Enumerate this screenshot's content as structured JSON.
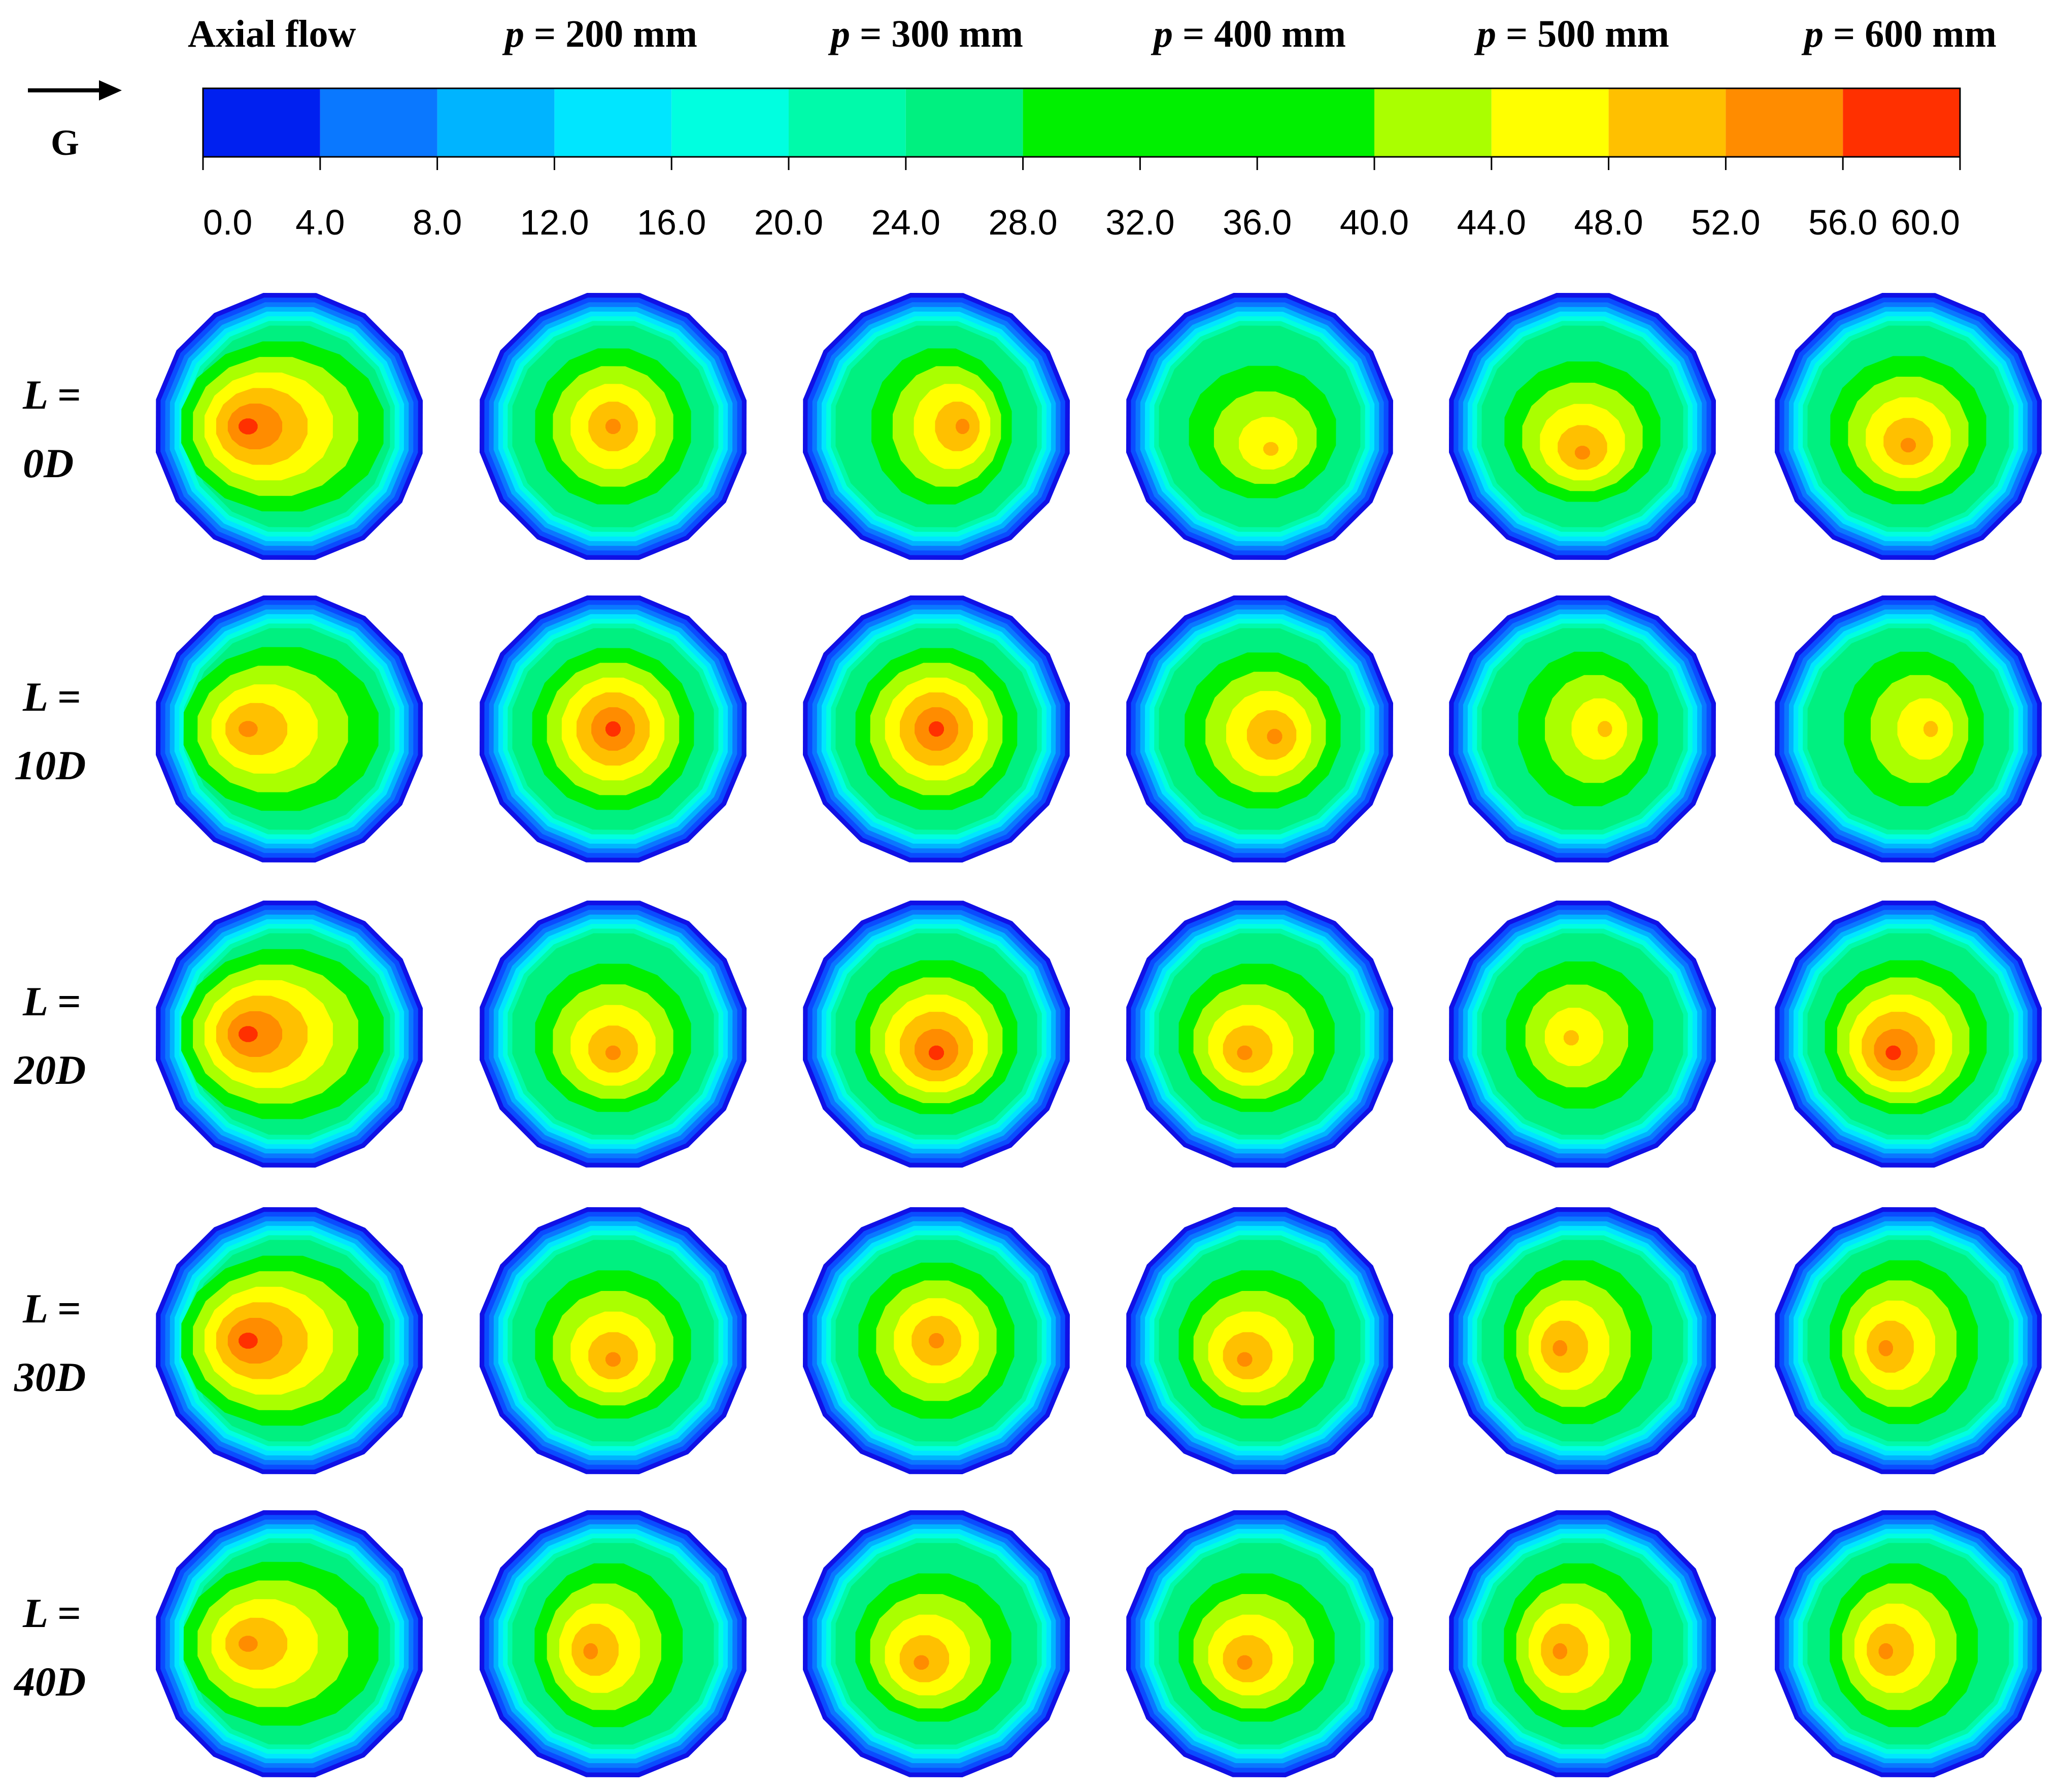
{
  "header": {
    "axial_flow": "Axial flow",
    "columns": [
      {
        "var": "p",
        "rest": " = 200 mm"
      },
      {
        "var": "p",
        "rest": " = 300 mm"
      },
      {
        "var": "p",
        "rest": " = 400 mm"
      },
      {
        "var": "p",
        "rest": " = 500 mm"
      },
      {
        "var": "p",
        "rest": " = 600 mm"
      }
    ]
  },
  "gravity": {
    "label": "G"
  },
  "colorbar": {
    "ticks": [
      "0.0",
      "4.0",
      "8.0",
      "12.0",
      "16.0",
      "20.0",
      "24.0",
      "28.0",
      "32.0",
      "36.0",
      "40.0",
      "44.0",
      "48.0",
      "52.0",
      "56.0",
      "60.0"
    ],
    "bands": [
      {
        "from": 0,
        "to": 4,
        "color": "#0020f0"
      },
      {
        "from": 4,
        "to": 8,
        "color": "#0a78ff"
      },
      {
        "from": 8,
        "to": 12,
        "color": "#00b4ff"
      },
      {
        "from": 12,
        "to": 16,
        "color": "#00e6ff"
      },
      {
        "from": 16,
        "to": 20,
        "color": "#00ffe0"
      },
      {
        "from": 20,
        "to": 24,
        "color": "#00faaa"
      },
      {
        "from": 24,
        "to": 28,
        "color": "#00f080"
      },
      {
        "from": 28,
        "to": 40,
        "color": "#00f000"
      },
      {
        "from": 40,
        "to": 44,
        "color": "#aaff00"
      },
      {
        "from": 44,
        "to": 48,
        "color": "#ffff00"
      },
      {
        "from": 48,
        "to": 52,
        "color": "#ffc000"
      },
      {
        "from": 52,
        "to": 56,
        "color": "#ff8c00"
      },
      {
        "from": 56,
        "to": 60,
        "color": "#ff3000"
      }
    ]
  },
  "rows": [
    {
      "line1": "L =",
      "line2": "0D"
    },
    {
      "line1": "L =",
      "line2": "10D"
    },
    {
      "line1": "L =",
      "line2": "20D"
    },
    {
      "line1": "L =",
      "line2": "30D"
    },
    {
      "line1": "L =",
      "line2": "40D"
    }
  ],
  "contour_grid": {
    "rows": 5,
    "cols": 6,
    "cells": [
      [
        {
          "max_level": 13,
          "shape": "left-band"
        },
        {
          "max_level": 12,
          "shape": "center"
        },
        {
          "max_level": 12,
          "shape": "right-lobe"
        },
        {
          "max_level": 11,
          "shape": "lower-right"
        },
        {
          "max_level": 12,
          "shape": "lower"
        },
        {
          "max_level": 12,
          "shape": "lower-center"
        }
      ],
      [
        {
          "max_level": 12,
          "shape": "left-band"
        },
        {
          "max_level": 13,
          "shape": "center"
        },
        {
          "max_level": 13,
          "shape": "center"
        },
        {
          "max_level": 12,
          "shape": "center-right"
        },
        {
          "max_level": 11,
          "shape": "right"
        },
        {
          "max_level": 11,
          "shape": "right"
        }
      ],
      [
        {
          "max_level": 13,
          "shape": "left-band"
        },
        {
          "max_level": 12,
          "shape": "lower-center"
        },
        {
          "max_level": 13,
          "shape": "lower-center"
        },
        {
          "max_level": 12,
          "shape": "lower-left"
        },
        {
          "max_level": 11,
          "shape": "center-left"
        },
        {
          "max_level": 13,
          "shape": "lower-left"
        }
      ],
      [
        {
          "max_level": 13,
          "shape": "left-band"
        },
        {
          "max_level": 12,
          "shape": "lower-center"
        },
        {
          "max_level": 12,
          "shape": "center"
        },
        {
          "max_level": 12,
          "shape": "lower-left"
        },
        {
          "max_level": 12,
          "shape": "left"
        },
        {
          "max_level": 12,
          "shape": "left"
        }
      ],
      [
        {
          "max_level": 12,
          "shape": "left-band"
        },
        {
          "max_level": 12,
          "shape": "left"
        },
        {
          "max_level": 12,
          "shape": "lower-left"
        },
        {
          "max_level": 12,
          "shape": "lower-left"
        },
        {
          "max_level": 12,
          "shape": "left"
        },
        {
          "max_level": 12,
          "shape": "left"
        }
      ]
    ]
  }
}
